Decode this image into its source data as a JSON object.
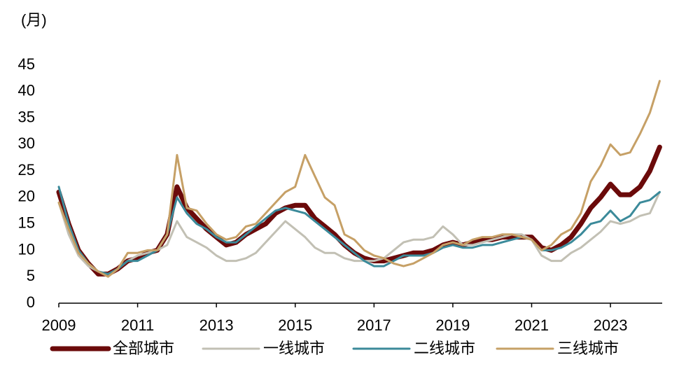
{
  "chart_data": {
    "type": "line",
    "y_label": "(月)",
    "x": [
      2009,
      2009.25,
      2009.5,
      2009.75,
      2010,
      2010.25,
      2010.5,
      2010.75,
      2011,
      2011.25,
      2011.5,
      2011.75,
      2012,
      2012.25,
      2012.5,
      2012.75,
      2013,
      2013.25,
      2013.5,
      2013.75,
      2014,
      2014.25,
      2014.5,
      2014.75,
      2015,
      2015.25,
      2015.5,
      2015.75,
      2016,
      2016.25,
      2016.5,
      2016.75,
      2017,
      2017.25,
      2017.5,
      2017.75,
      2018,
      2018.25,
      2018.5,
      2018.75,
      2019,
      2019.25,
      2019.5,
      2019.75,
      2020,
      2020.25,
      2020.5,
      2020.75,
      2021,
      2021.25,
      2021.5,
      2021.75,
      2022,
      2022.25,
      2022.5,
      2022.75,
      2023,
      2023.25,
      2023.5,
      2023.75,
      2024,
      2024.25
    ],
    "xlim": [
      2009,
      2024.5
    ],
    "xticks": [
      2009,
      2011,
      2013,
      2015,
      2017,
      2019,
      2021,
      2023
    ],
    "ylim": [
      0,
      45
    ],
    "yticks": [
      0,
      5,
      10,
      15,
      20,
      25,
      30,
      35,
      40,
      45
    ],
    "series": [
      {
        "name": "全部城市",
        "color": "#6b0a0a",
        "width": 7,
        "values": [
          21,
          15,
          10,
          7.5,
          5.5,
          5.5,
          6.5,
          8,
          8.5,
          9.5,
          10,
          13,
          22,
          18,
          16,
          14,
          12.5,
          11,
          11.5,
          13,
          14,
          15,
          17,
          18,
          18.5,
          18.5,
          16,
          14.5,
          13,
          11,
          9.5,
          8.5,
          8,
          8,
          8.5,
          9,
          9.5,
          9.5,
          10,
          11,
          11.5,
          11,
          11.5,
          12,
          12,
          12.5,
          12.5,
          12.5,
          12.5,
          10.5,
          10,
          11,
          12.5,
          15,
          18,
          20,
          22.5,
          20.5,
          20.5,
          22,
          25,
          29.5
        ]
      },
      {
        "name": "一线城市",
        "color": "#c2c0b4",
        "width": 3,
        "values": [
          19,
          13,
          9,
          7,
          6,
          5.5,
          6.5,
          8,
          9,
          9.5,
          10,
          11,
          15.5,
          12.5,
          11.5,
          10.5,
          9,
          8,
          8,
          8.5,
          9.5,
          11.5,
          13.5,
          15.5,
          14,
          12.5,
          10.5,
          9.5,
          9.5,
          8.5,
          8,
          8,
          8,
          8.5,
          10,
          11.5,
          12,
          12,
          12.5,
          14.5,
          13,
          11,
          11,
          11.5,
          12,
          12.5,
          13,
          13,
          12,
          9,
          8,
          8,
          9.5,
          10.5,
          12,
          13.5,
          15.5,
          15,
          15.5,
          16.5,
          17,
          21
        ]
      },
      {
        "name": "二线城市",
        "color": "#3b8a9a",
        "width": 3,
        "values": [
          22,
          15,
          10,
          7.5,
          6,
          5.5,
          6.5,
          8,
          8,
          9,
          10,
          13,
          20,
          17,
          15,
          14,
          12.5,
          11.5,
          11.5,
          13,
          14.5,
          16,
          17.5,
          18,
          17.5,
          17,
          15.5,
          14,
          12.5,
          11,
          9.5,
          8,
          7,
          7,
          8,
          9,
          9,
          9,
          9.5,
          10.5,
          11,
          10.5,
          10.5,
          11,
          11,
          11.5,
          12,
          12.5,
          12,
          10,
          10,
          10.5,
          11.5,
          13,
          15,
          15.5,
          17.5,
          15.5,
          16.5,
          19,
          19.5,
          21
        ]
      },
      {
        "name": "三线城市",
        "color": "#c6a066",
        "width": 3,
        "values": [
          19,
          14,
          9.5,
          7.5,
          6,
          5,
          6.5,
          9.5,
          9.5,
          10,
          10,
          13,
          28,
          18,
          17.5,
          15,
          13,
          12,
          12.5,
          14.5,
          15,
          17,
          19,
          21,
          22,
          28,
          24,
          20,
          18.5,
          13,
          12,
          10,
          9,
          8.5,
          7.5,
          7,
          7.5,
          8.5,
          9.5,
          11,
          11.5,
          11,
          12,
          12.5,
          12.5,
          13,
          13,
          12.5,
          12,
          10,
          11,
          13,
          14,
          17,
          23,
          26,
          30,
          28,
          28.5,
          32,
          36,
          42
        ]
      }
    ]
  }
}
